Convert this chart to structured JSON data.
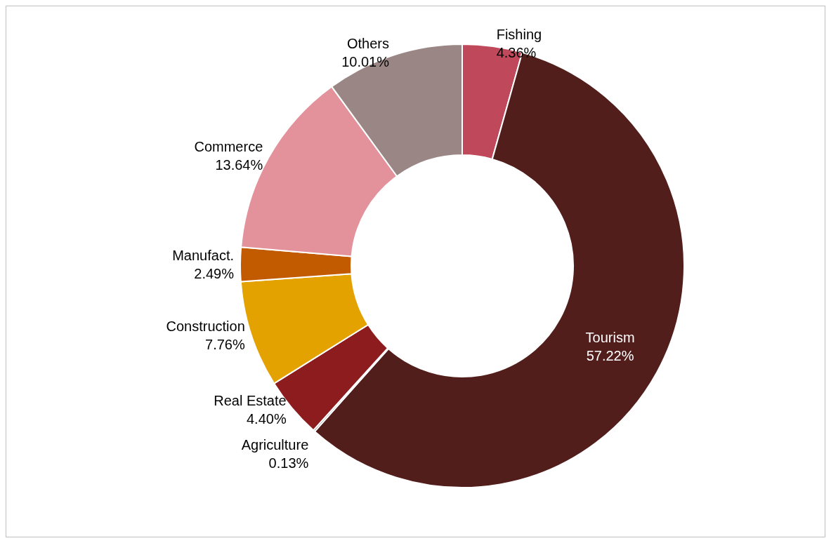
{
  "chart_data": {
    "type": "donut",
    "categories": [
      "Fishing",
      "Tourism",
      "Agriculture",
      "Real Estate",
      "Construction",
      "Manufact.",
      "Commerce",
      "Others"
    ],
    "values": [
      4.36,
      57.22,
      0.13,
      4.4,
      7.76,
      2.49,
      13.64,
      10.01
    ],
    "value_labels": [
      "4.36%",
      "57.22%",
      "0.13%",
      "4.40%",
      "7.76%",
      "2.49%",
      "13.64%",
      "10.01%"
    ],
    "colors": [
      "#c0485b",
      "#521e1c",
      "#6e6e6e",
      "#8c1c1e",
      "#e3a200",
      "#c25b00",
      "#e3929b",
      "#9a8785"
    ],
    "legend": false
  }
}
